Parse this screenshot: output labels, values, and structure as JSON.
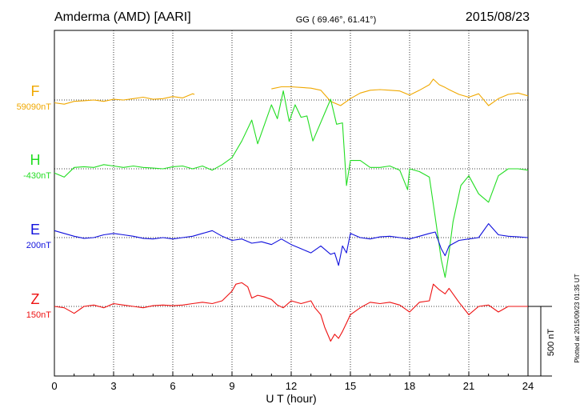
{
  "chart_data": {
    "type": "line",
    "title": "Amderma (AMD)  [AARI]",
    "coords": "GG ( 69.46°,  61.41°)",
    "date": "2015/08/23",
    "xlabel": "U T (hour)",
    "xlim": [
      0,
      24
    ],
    "x_ticks": [
      "0",
      "3",
      "6",
      "9",
      "12",
      "15",
      "18",
      "21",
      "24"
    ],
    "scale_label": "500 nT",
    "scale_nT": 500,
    "plotted_note": "Plotted at 2015/09/23 01:35 UT",
    "grid": true,
    "series": [
      {
        "name": "F",
        "baseline": "59090nT",
        "color": "#f0a800",
        "x": [
          0,
          0.5,
          1,
          1.5,
          2,
          2.5,
          3,
          3.5,
          4,
          4.5,
          5,
          5.5,
          6,
          6.5,
          7,
          7.1,
          null,
          11,
          11.5,
          12,
          12.5,
          13,
          13.5,
          14,
          14.5,
          15,
          15.5,
          16,
          16.5,
          17,
          17.5,
          18,
          18.5,
          19,
          19.2,
          19.5,
          19.8,
          20,
          20.5,
          21,
          21.5,
          22,
          22.5,
          23,
          23.5,
          24
        ],
        "y": [
          -20,
          -30,
          -10,
          -5,
          0,
          -10,
          5,
          0,
          10,
          20,
          5,
          10,
          25,
          15,
          45,
          40,
          null,
          80,
          95,
          95,
          90,
          85,
          70,
          -10,
          -40,
          10,
          50,
          70,
          75,
          70,
          65,
          35,
          70,
          110,
          150,
          110,
          90,
          75,
          40,
          20,
          45,
          -40,
          10,
          40,
          50,
          30
        ]
      },
      {
        "name": "H",
        "baseline": "-430nT",
        "color": "#22dd22",
        "x": [
          0,
          0.5,
          1,
          1.5,
          2,
          2.5,
          3,
          3.5,
          4,
          4.5,
          5,
          5.5,
          6,
          6.5,
          7,
          7.5,
          8,
          8.5,
          9,
          9.5,
          10,
          10.3,
          10.6,
          11,
          11.3,
          11.6,
          11.9,
          12.2,
          12.5,
          12.8,
          13.1,
          13.4,
          13.7,
          14,
          14.3,
          14.6,
          14.8,
          15,
          15.5,
          16,
          16.5,
          17,
          17.5,
          17.9,
          18,
          18.5,
          19,
          19.3,
          19.6,
          19.8,
          20,
          20.2,
          20.6,
          21,
          21.5,
          22,
          22.5,
          23,
          23.5,
          24
        ],
        "y": [
          -30,
          -60,
          10,
          15,
          10,
          30,
          20,
          10,
          20,
          10,
          5,
          0,
          15,
          20,
          0,
          20,
          -10,
          30,
          80,
          200,
          350,
          180,
          300,
          460,
          360,
          560,
          340,
          460,
          370,
          380,
          200,
          300,
          400,
          500,
          320,
          330,
          -120,
          60,
          60,
          10,
          10,
          20,
          -10,
          -150,
          0,
          -20,
          -60,
          -350,
          -650,
          -780,
          -600,
          -380,
          -120,
          -50,
          -180,
          -240,
          -50,
          0,
          0,
          -10
        ]
      },
      {
        "name": "E",
        "baseline": "200nT",
        "color": "#1010dd",
        "x": [
          0,
          0.5,
          1,
          1.5,
          2,
          2.5,
          3,
          3.5,
          4,
          4.5,
          5,
          5.5,
          6,
          6.5,
          7,
          7.5,
          8,
          8.5,
          9,
          9.5,
          10,
          10.5,
          11,
          11.5,
          12,
          12.5,
          13,
          13.5,
          14,
          14.2,
          14.4,
          14.6,
          14.8,
          15,
          15.5,
          16,
          16.5,
          17,
          17.5,
          18,
          18.5,
          19,
          19.3,
          19.6,
          19.8,
          20,
          20.5,
          21,
          21.5,
          22,
          22.5,
          23,
          23.5,
          24
        ],
        "y": [
          50,
          30,
          10,
          -5,
          0,
          20,
          30,
          20,
          10,
          -5,
          -10,
          0,
          -10,
          0,
          10,
          30,
          50,
          10,
          -20,
          -10,
          -40,
          -30,
          -50,
          -10,
          -50,
          -80,
          -110,
          -60,
          -120,
          -110,
          -200,
          -60,
          -110,
          30,
          0,
          -10,
          5,
          10,
          0,
          -10,
          10,
          30,
          40,
          -80,
          -130,
          -60,
          -20,
          -10,
          0,
          100,
          20,
          10,
          5,
          0
        ]
      },
      {
        "name": "Z",
        "baseline": "150nT",
        "color": "#ee1111",
        "x": [
          0,
          0.5,
          1,
          1.5,
          2,
          2.5,
          3,
          3.5,
          4,
          4.5,
          5,
          5.5,
          6,
          6.5,
          7,
          7.5,
          8,
          8.5,
          9,
          9.2,
          9.5,
          9.8,
          10,
          10.3,
          10.6,
          11,
          11.3,
          11.6,
          12,
          12.5,
          13,
          13.2,
          13.5,
          13.7,
          14,
          14.2,
          14.4,
          14.6,
          14.8,
          15,
          15.5,
          16,
          16.5,
          17,
          17.5,
          18,
          18.5,
          19,
          19.2,
          19.5,
          19.8,
          20,
          20.5,
          21,
          21.5,
          22,
          22.5,
          23,
          23.5,
          24
        ],
        "y": [
          0,
          -10,
          -50,
          0,
          10,
          -10,
          20,
          10,
          0,
          -10,
          5,
          10,
          5,
          10,
          20,
          30,
          20,
          40,
          110,
          160,
          170,
          140,
          60,
          80,
          70,
          50,
          10,
          -10,
          40,
          20,
          40,
          -10,
          -60,
          -150,
          -250,
          -200,
          -230,
          -180,
          -120,
          -60,
          -10,
          30,
          20,
          30,
          10,
          -40,
          30,
          40,
          160,
          120,
          90,
          130,
          30,
          -60,
          0,
          10,
          -40,
          0,
          0,
          0
        ]
      }
    ]
  }
}
